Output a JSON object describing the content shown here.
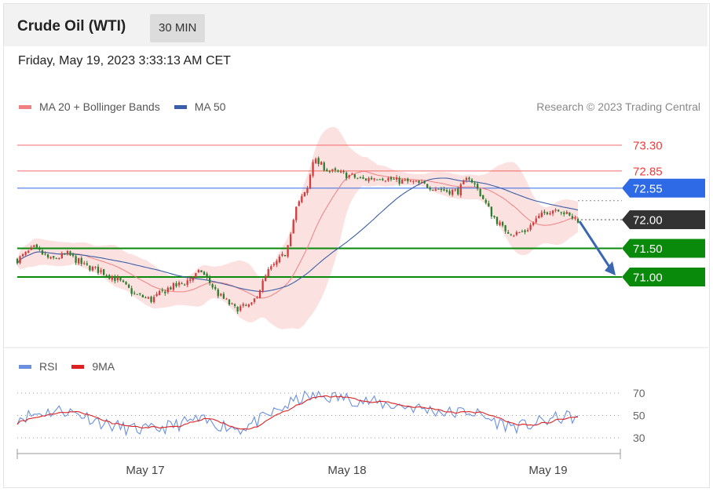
{
  "header": {
    "instrument": "Crude Oil (WTI)",
    "timeframe": "30 MIN"
  },
  "timestamp": "Friday, May 19, 2023 3:33:13 AM CET",
  "legend": {
    "items": [
      {
        "label": "MA 20 + Bollinger Bands",
        "color": "#f08080"
      },
      {
        "label": "MA 50",
        "color": "#3a5fa8"
      }
    ],
    "credit": "Research © 2023 Trading Central"
  },
  "rsi_legend": {
    "items": [
      {
        "label": "RSI",
        "color": "#6a8fe0"
      },
      {
        "label": "9MA",
        "color": "#e02020"
      }
    ]
  },
  "chart_data": [
    {
      "type": "candlestick",
      "y_range": [
        70.2,
        73.6
      ],
      "x_labels": [
        "May 17",
        "May 18",
        "May 19"
      ],
      "levels": [
        {
          "value": 73.3,
          "label": "73.30",
          "kind": "resistance",
          "color": "#f03c3c"
        },
        {
          "value": 72.85,
          "label": "72.85",
          "kind": "resistance",
          "color": "#f03c3c"
        },
        {
          "value": 72.55,
          "label": "72.55",
          "kind": "pivot",
          "color": "#2f6ae6"
        },
        {
          "value": 72.0,
          "label": "72.00",
          "kind": "last",
          "color": "#333333"
        },
        {
          "value": 71.5,
          "label": "71.50",
          "kind": "target",
          "color": "#0a8a0a"
        },
        {
          "value": 71.0,
          "label": "71.00",
          "kind": "target",
          "color": "#0a8a0a"
        }
      ],
      "forecast_arrow": {
        "from": 72.0,
        "to": 71.0,
        "color": "#3a67b0"
      },
      "anchors": [
        [
          0,
          71.3
        ],
        [
          6,
          71.5
        ],
        [
          12,
          71.3
        ],
        [
          18,
          71.4
        ],
        [
          24,
          71.2
        ],
        [
          30,
          71.1
        ],
        [
          36,
          70.95
        ],
        [
          42,
          70.7
        ],
        [
          48,
          70.6
        ],
        [
          54,
          70.8
        ],
        [
          60,
          70.9
        ],
        [
          66,
          71.1
        ],
        [
          72,
          70.7
        ],
        [
          78,
          70.45
        ],
        [
          84,
          70.5
        ],
        [
          90,
          71.1
        ],
        [
          96,
          71.4
        ],
        [
          100,
          72.2
        ],
        [
          104,
          72.55
        ],
        [
          106,
          73.05
        ],
        [
          112,
          72.85
        ],
        [
          118,
          72.78
        ],
        [
          124,
          72.7
        ],
        [
          130,
          72.75
        ],
        [
          136,
          72.68
        ],
        [
          142,
          72.65
        ],
        [
          148,
          72.58
        ],
        [
          154,
          72.5
        ],
        [
          158,
          72.5
        ],
        [
          162,
          72.75
        ],
        [
          166,
          72.45
        ],
        [
          170,
          72.1
        ],
        [
          174,
          71.85
        ],
        [
          178,
          71.75
        ],
        [
          182,
          71.8
        ],
        [
          186,
          72.0
        ],
        [
          190,
          72.15
        ],
        [
          194,
          72.2
        ],
        [
          198,
          72.05
        ],
        [
          201,
          72.0
        ]
      ]
    },
    {
      "type": "line",
      "title": "RSI",
      "series": [
        {
          "name": "RSI",
          "color": "#6a8fe0"
        },
        {
          "name": "9MA",
          "color": "#e02020"
        }
      ],
      "y_ticks": [
        70,
        50,
        30
      ],
      "ylim": [
        22,
        78
      ],
      "anchors": [
        [
          0,
          48
        ],
        [
          8,
          52
        ],
        [
          16,
          55
        ],
        [
          24,
          50
        ],
        [
          32,
          42
        ],
        [
          40,
          38
        ],
        [
          48,
          37
        ],
        [
          56,
          41
        ],
        [
          64,
          46
        ],
        [
          72,
          42
        ],
        [
          80,
          38
        ],
        [
          88,
          47
        ],
        [
          96,
          58
        ],
        [
          102,
          66
        ],
        [
          108,
          67
        ],
        [
          116,
          66
        ],
        [
          124,
          63
        ],
        [
          132,
          60
        ],
        [
          140,
          58
        ],
        [
          148,
          55
        ],
        [
          156,
          52
        ],
        [
          162,
          54
        ],
        [
          168,
          48
        ],
        [
          174,
          42
        ],
        [
          180,
          40
        ],
        [
          186,
          43
        ],
        [
          192,
          47
        ],
        [
          198,
          49
        ],
        [
          201,
          47
        ]
      ]
    }
  ]
}
